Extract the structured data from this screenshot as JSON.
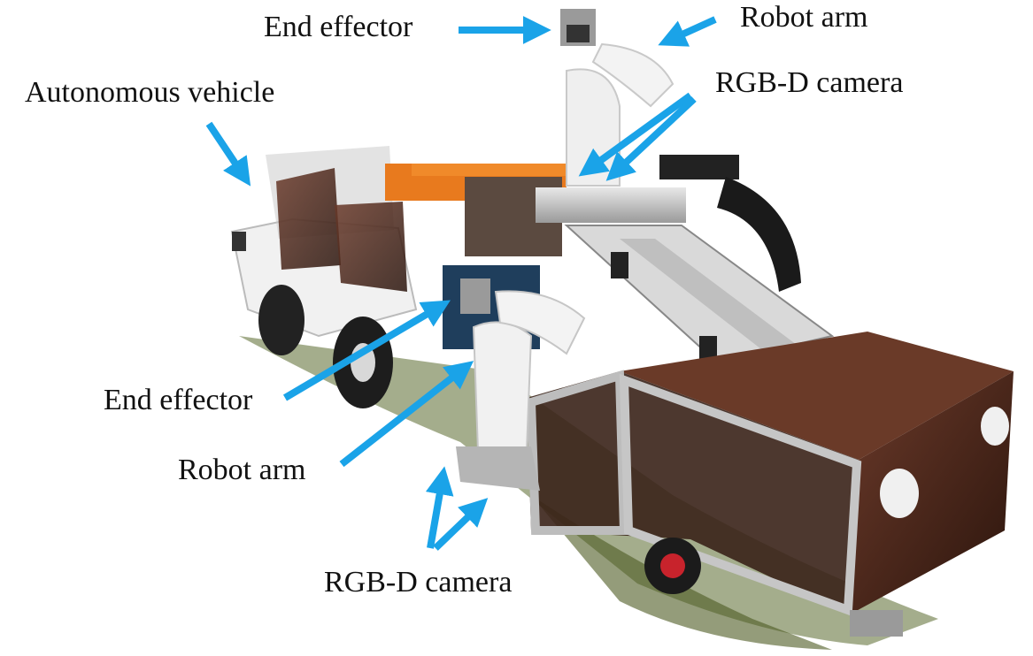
{
  "labels": {
    "end_effector_top": "End effector",
    "robot_arm_top": "Robot arm",
    "rgbd_camera_top": "RGB-D camera",
    "autonomous_vehicle": "Autonomous vehicle",
    "end_effector_mid": "End effector",
    "robot_arm_mid": "Robot arm",
    "rgbd_camera_bottom": "RGB-D camera"
  },
  "colors": {
    "arrow": "#1aa3e8",
    "background": "#ffffff"
  }
}
